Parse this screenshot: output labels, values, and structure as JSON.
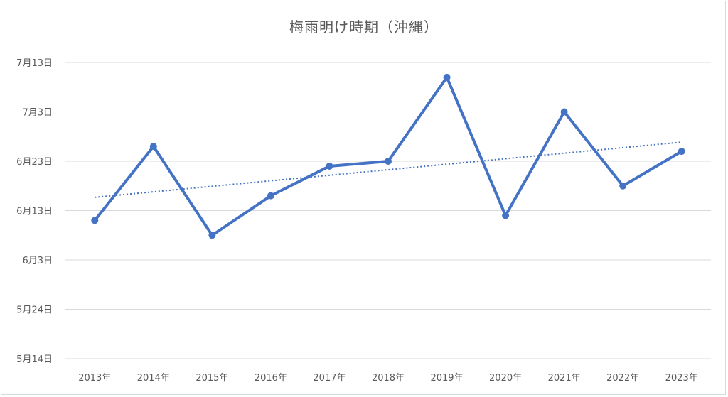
{
  "chart_data": {
    "type": "line",
    "title": "梅雨明け時期（沖縄）",
    "categories": [
      "2013年",
      "2014年",
      "2015年",
      "2016年",
      "2017年",
      "2018年",
      "2019年",
      "2020年",
      "2021年",
      "2022年",
      "2023年"
    ],
    "series": [
      {
        "values": [
          "2013-06-11",
          "2014-06-26",
          "2015-06-08",
          "2016-06-16",
          "2017-06-22",
          "2018-06-23",
          "2019-07-10",
          "2020-06-12",
          "2021-07-03",
          "2022-06-18",
          "2023-06-25"
        ],
        "color": "#4472c4"
      }
    ],
    "trendline": {
      "type": "linear",
      "style": "dotted",
      "color": "#4472c4"
    },
    "y_tick_labels": [
      "5月14日",
      "5月24日",
      "6月3日",
      "6月13日",
      "6月23日",
      "7月3日",
      "7月13日"
    ],
    "y_ticks": [
      "2000-05-14",
      "2000-05-24",
      "2000-06-03",
      "2000-06-13",
      "2000-06-23",
      "2000-07-03",
      "2000-07-13"
    ],
    "ylim": [
      "2000-05-14",
      "2000-07-13"
    ],
    "grid": true,
    "xlabel": "",
    "ylabel": ""
  }
}
